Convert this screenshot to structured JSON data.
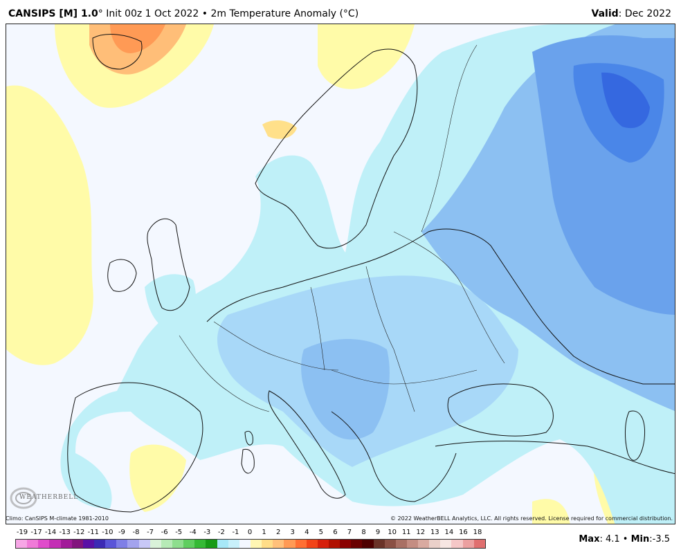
{
  "header": {
    "model": "CANSIPS [M] 1.0",
    "degree": "°",
    "init": " Init 00z 1 Oct 2022",
    "bullet": " • ",
    "product": "2m Temperature Anomaly (°C)",
    "valid_label": "Valid",
    "valid_value": ": Dec 2022"
  },
  "footer": {
    "climo": "Climo: CanSIPS M-climate 1981-2010",
    "copyright": "© 2022 WeatherBELL Analytics, LLC. All rights reserved. License required for commercial distribution.",
    "logo_text": "WEATHERBELL"
  },
  "legend": {
    "labels": [
      "-19",
      "-17",
      "-14",
      "-13",
      "-12",
      "-11",
      "-10",
      "-9",
      "-8",
      "-7",
      "-6",
      "-5",
      "-4",
      "-3",
      "-2",
      "-1",
      "0",
      "1",
      "2",
      "3",
      "4",
      "5",
      "6",
      "7",
      "8",
      "9",
      "10",
      "11",
      "12",
      "13",
      "14",
      "16",
      "18"
    ],
    "colors": [
      "#f7a6e6",
      "#f07ad8",
      "#e04ccb",
      "#c42fb5",
      "#a21a99",
      "#82137d",
      "#5a10a6",
      "#3c2ab4",
      "#5a55d8",
      "#7f7fe6",
      "#a3a3ee",
      "#c8c8f7",
      "#d9f2d9",
      "#b6eab6",
      "#8ede8e",
      "#5fce5f",
      "#35b935",
      "#169a16",
      "#a7e8f7",
      "#c8f1fb",
      "#f4f8ff",
      "#fff6b3",
      "#ffdd88",
      "#ffc07a",
      "#ff9a55",
      "#ff6f33",
      "#f24418",
      "#d6200b",
      "#b01000",
      "#8a0000",
      "#6a0000",
      "#4e0000",
      "#6a3328",
      "#8a5044",
      "#a97064",
      "#c48d82",
      "#d9aaa0",
      "#ead0c9",
      "#f7e6e2",
      "#f5c7c7",
      "#eca0a0",
      "#e06f6f"
    ]
  },
  "stats": {
    "max_label": "Max",
    "max_value": ": 4.1",
    "sep": " • ",
    "min_label": "Min",
    "min_value": ":-3.5"
  },
  "map": {
    "water_color": "#f4f8ff",
    "colors": {
      "warm_light": "#fffba8",
      "warm": "#ffe08a",
      "warmer": "#ffbe78",
      "warmest": "#ff9a55",
      "cool_light": "#bff0f8",
      "cool": "#a8d8f8",
      "cooler": "#8cc0f2",
      "coolest": "#6aa2ec",
      "cold": "#4a86e8",
      "coldest": "#3568e0"
    }
  }
}
